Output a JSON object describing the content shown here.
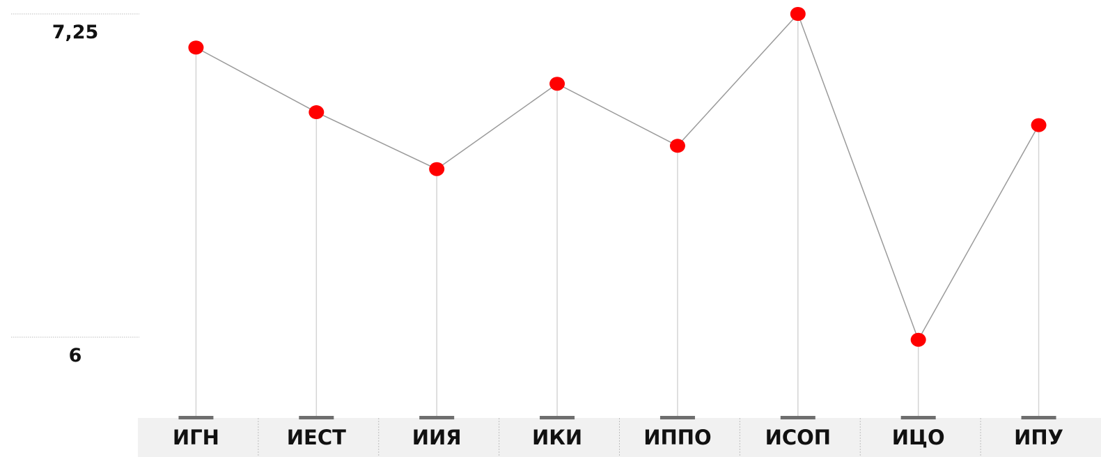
{
  "chart_data": {
    "type": "line",
    "title": "",
    "xlabel": "",
    "ylabel": "",
    "categories": [
      "ИГН",
      "ИЕСТ",
      "ИИЯ",
      "ИКИ",
      "ИППО",
      "ИСОП",
      "ИЦО",
      "ИПУ"
    ],
    "series": [
      {
        "values": [
          7.12,
          6.87,
          6.65,
          6.98,
          6.74,
          7.25,
          5.99,
          6.82
        ]
      }
    ],
    "yticks": [
      {
        "value": 7.25,
        "label": "7,25"
      },
      {
        "value": 6,
        "label": "6"
      }
    ],
    "grid": false,
    "legend": "none",
    "colors": {
      "marker": "#ff0000",
      "line": "#9a9a9a",
      "stem": "#d4d4d4",
      "tick_line": "#bcbcbc",
      "category_band": "#f1f1f1",
      "category_divider": "#bdbdbd",
      "base_mark": "#6e6e6e"
    }
  }
}
